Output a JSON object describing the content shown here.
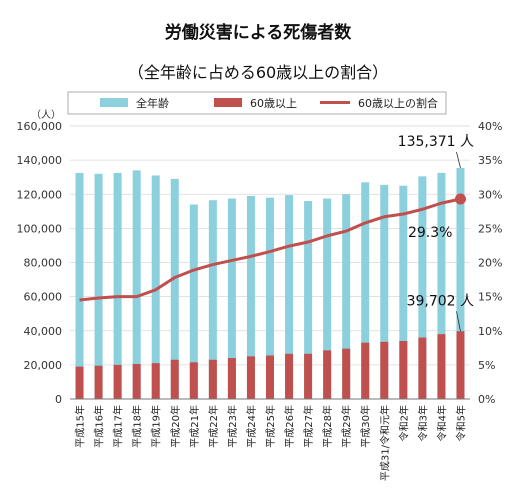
{
  "chart_data": {
    "type": "bar+line",
    "title": "労働災害による死傷者数",
    "subtitle": "（全年齢に占める60歳以上の割合）",
    "ylabel_left": "（人）",
    "categories": [
      "平成15年",
      "平成16年",
      "平成17年",
      "平成18年",
      "平成19年",
      "平成20年",
      "平成21年",
      "平成22年",
      "平成23年",
      "平成24年",
      "平成25年",
      "平成26年",
      "平成27年",
      "平成28年",
      "平成29年",
      "平成30年",
      "平成31/令和元年",
      "令和2年",
      "令和3年",
      "令和4年",
      "令和5年"
    ],
    "left_axis": {
      "min": 0,
      "max": 160000,
      "step": 20000,
      "ticks": [
        "0",
        "20,000",
        "40,000",
        "60,000",
        "80,000",
        "100,000",
        "120,000",
        "140,000",
        "160,000"
      ]
    },
    "right_axis": {
      "min": 0,
      "max": 40,
      "step": 5,
      "ticks": [
        "0%",
        "5%",
        "10%",
        "15%",
        "20%",
        "25%",
        "30%",
        "35%",
        "40%"
      ]
    },
    "series": [
      {
        "name": "全年齢",
        "kind": "bar",
        "color": "#8ccfdd",
        "values": [
          132500,
          132000,
          132500,
          134000,
          131000,
          129000,
          114000,
          116500,
          117500,
          119000,
          118000,
          119500,
          116000,
          117500,
          120000,
          127000,
          125500,
          125000,
          130500,
          132500,
          135371
        ]
      },
      {
        "name": "60歳以上",
        "kind": "bar",
        "color": "#c0504d",
        "values": [
          19000,
          19500,
          20000,
          20500,
          21000,
          23000,
          21500,
          23000,
          24000,
          25000,
          25500,
          26500,
          26500,
          28500,
          29500,
          33000,
          33500,
          34000,
          36000,
          38000,
          39702
        ]
      },
      {
        "name": "60歳以上の割合",
        "kind": "line",
        "axis": "right",
        "color": "#c0504d",
        "values": [
          14.5,
          14.8,
          15.0,
          15.0,
          16.0,
          17.8,
          18.9,
          19.7,
          20.3,
          20.9,
          21.6,
          22.4,
          23.0,
          23.9,
          24.6,
          25.8,
          26.7,
          27.1,
          27.8,
          28.7,
          29.3
        ]
      }
    ],
    "annotations": [
      {
        "text": "135,371 人",
        "target": "全年齢@令和5年"
      },
      {
        "text": "29.3%",
        "target": "60歳以上の割合@令和5年"
      },
      {
        "text": "39,702 人",
        "target": "60歳以上@令和5年"
      }
    ],
    "legend_position": "top"
  }
}
